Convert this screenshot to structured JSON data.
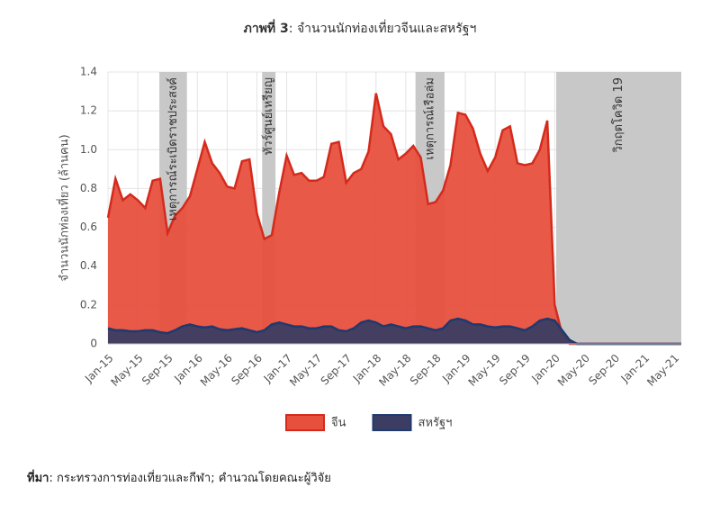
{
  "chart_data": {
    "type": "area",
    "title_label": "ภาพที่ 3",
    "title": ": จำนวนนักท่องเที่ยวจีนและสหรัฐฯ",
    "y_label": "จำนวนนักท่องเที่ยว (ล้านคน)",
    "categories": [
      "Jan-15",
      null,
      null,
      null,
      "May-15",
      null,
      null,
      null,
      "Sep-15",
      null,
      null,
      null,
      "Jan-16",
      null,
      null,
      null,
      "May-16",
      null,
      null,
      null,
      "Sep-16",
      null,
      null,
      null,
      "Jan-17",
      null,
      null,
      null,
      "May-17",
      null,
      null,
      null,
      "Sep-17",
      null,
      null,
      null,
      "Jan-18",
      null,
      null,
      null,
      "May-18",
      null,
      null,
      null,
      "Sep-18",
      null,
      null,
      null,
      "Jan-19",
      null,
      null,
      null,
      "May-19",
      null,
      null,
      null,
      "Sep-19",
      null,
      null,
      null,
      "Jan-20",
      null,
      null,
      null,
      "May-20",
      null,
      null,
      null,
      "Sep-20",
      null,
      null,
      null,
      "Jan-21",
      null,
      null,
      null,
      "May-21",
      null
    ],
    "series": [
      {
        "name": "จีน",
        "color": "#e8503e",
        "line_color": "#d42a1c",
        "values": [
          0.65,
          0.85,
          0.74,
          0.77,
          0.74,
          0.7,
          0.84,
          0.85,
          0.57,
          0.66,
          0.7,
          0.76,
          0.9,
          1.04,
          0.93,
          0.88,
          0.81,
          0.8,
          0.94,
          0.95,
          0.67,
          0.54,
          0.56,
          0.78,
          0.97,
          0.87,
          0.88,
          0.84,
          0.84,
          0.86,
          1.03,
          1.04,
          0.83,
          0.88,
          0.9,
          0.99,
          1.29,
          1.12,
          1.08,
          0.95,
          0.98,
          1.02,
          0.96,
          0.72,
          0.73,
          0.79,
          0.92,
          1.19,
          1.18,
          1.11,
          0.98,
          0.89,
          0.96,
          1.1,
          1.12,
          0.93,
          0.92,
          0.93,
          1.0,
          1.15,
          0.2,
          0.05,
          0,
          0,
          0,
          0,
          0,
          0,
          0,
          0,
          0,
          0,
          0,
          0,
          0,
          0,
          0,
          0
        ]
      },
      {
        "name": "สหรัฐฯ",
        "color": "#3b3d62",
        "line_color": "#1e3a6e",
        "values": [
          0.08,
          0.07,
          0.07,
          0.065,
          0.065,
          0.07,
          0.07,
          0.06,
          0.055,
          0.07,
          0.09,
          0.1,
          0.09,
          0.085,
          0.09,
          0.075,
          0.07,
          0.075,
          0.08,
          0.07,
          0.06,
          0.07,
          0.1,
          0.11,
          0.1,
          0.09,
          0.09,
          0.08,
          0.08,
          0.09,
          0.09,
          0.07,
          0.065,
          0.08,
          0.11,
          0.12,
          0.11,
          0.09,
          0.1,
          0.09,
          0.08,
          0.09,
          0.09,
          0.08,
          0.07,
          0.08,
          0.12,
          0.13,
          0.12,
          0.1,
          0.1,
          0.09,
          0.085,
          0.09,
          0.09,
          0.08,
          0.07,
          0.09,
          0.12,
          0.13,
          0.12,
          0.07,
          0.02,
          0,
          0,
          0,
          0,
          0,
          0,
          0,
          0,
          0,
          0,
          0,
          0,
          0,
          0,
          0
        ]
      }
    ],
    "ylim": [
      0,
      1.4
    ],
    "yticks": [
      0,
      0.2,
      0.4,
      0.6,
      0.8,
      {
        "value": 1,
        "label": "1.0"
      },
      1.2,
      1.4
    ],
    "grid": true,
    "annotations": [
      {
        "label": "เหตุการณ์ระเบิดราชประสงค์"
      },
      {
        "label": "ทัวร์ศูนย์เหรียญ"
      },
      {
        "label": "เหตุการณ์เรือล่ม"
      },
      {
        "label": "วิกฤตโควิด 19"
      }
    ],
    "source_label": "ที่มา",
    "source": ": กระทรวงการท่องเที่ยวและกีฬา; คำนวณโดยคณะผู้วิจัย"
  }
}
